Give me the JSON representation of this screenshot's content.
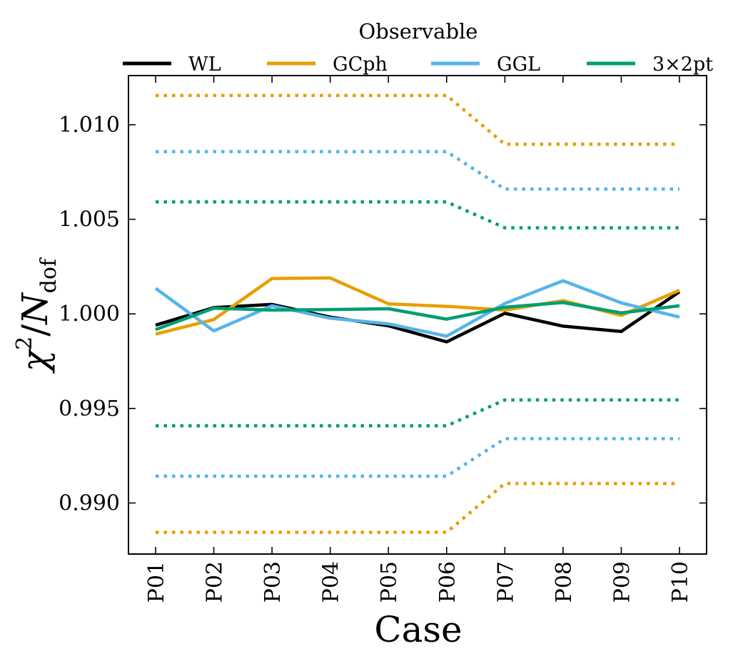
{
  "chart_data": {
    "type": "line",
    "xlabel": "Case",
    "ylabel_main": "χ",
    "ylabel_sup": "2",
    "ylabel_slash": "/",
    "ylabel_n": "N",
    "ylabel_sub": "dof",
    "legend_title": "Observable",
    "legend_position": "top-outside",
    "categories": [
      "P01",
      "P02",
      "P03",
      "P04",
      "P05",
      "P06",
      "P07",
      "P08",
      "P09",
      "P10"
    ],
    "ylim": [
      0.9873,
      1.0126
    ],
    "yticks": [
      0.99,
      0.995,
      1.0,
      1.005,
      1.01
    ],
    "ytick_labels": [
      "0.990",
      "0.995",
      "1.000",
      "1.005",
      "1.010"
    ],
    "grid": false,
    "series": [
      {
        "name": "WL",
        "color": "#000000",
        "values": [
          0.9994,
          1.00033,
          1.0005,
          0.99983,
          0.99937,
          0.99852,
          1.00003,
          0.99935,
          0.99907,
          1.00117
        ]
      },
      {
        "name": "GCph",
        "color": "#E69F00",
        "values": [
          0.99893,
          0.9997,
          1.00187,
          1.0019,
          1.00053,
          1.0004,
          1.0002,
          1.0007,
          0.99992,
          1.00125
        ],
        "bounds_upper": [
          1.01155,
          1.01155,
          1.01155,
          1.01155,
          1.01155,
          1.01155,
          1.00897,
          1.00897,
          1.00897,
          1.00897
        ],
        "bounds_lower": [
          0.98845,
          0.98845,
          0.98845,
          0.98845,
          0.98845,
          0.98845,
          0.99103,
          0.99103,
          0.99103,
          0.99103
        ]
      },
      {
        "name": "GGL",
        "color": "#56B4E9",
        "values": [
          1.00135,
          0.9991,
          1.00043,
          0.99977,
          0.99947,
          0.99882,
          1.00055,
          1.00175,
          1.00058,
          0.99983
        ],
        "bounds_upper": [
          1.00858,
          1.00858,
          1.00858,
          1.00858,
          1.00858,
          1.00858,
          1.0066,
          1.0066,
          1.0066,
          1.0066
        ],
        "bounds_lower": [
          0.99142,
          0.99142,
          0.99142,
          0.99142,
          0.99142,
          0.99142,
          0.9934,
          0.9934,
          0.9934,
          0.9934
        ]
      },
      {
        "name": "3×2pt",
        "color": "#009E73",
        "values": [
          0.99917,
          1.0003,
          1.0002,
          1.00023,
          1.00027,
          0.99972,
          1.00035,
          1.0006,
          1.00005,
          1.00043
        ],
        "bounds_upper": [
          1.00592,
          1.00592,
          1.00592,
          1.00592,
          1.00592,
          1.00592,
          1.00455,
          1.00455,
          1.00455,
          1.00455
        ],
        "bounds_lower": [
          0.99408,
          0.99408,
          0.99408,
          0.99408,
          0.99408,
          0.99408,
          0.99545,
          0.99545,
          0.99545,
          0.99545
        ]
      }
    ]
  }
}
